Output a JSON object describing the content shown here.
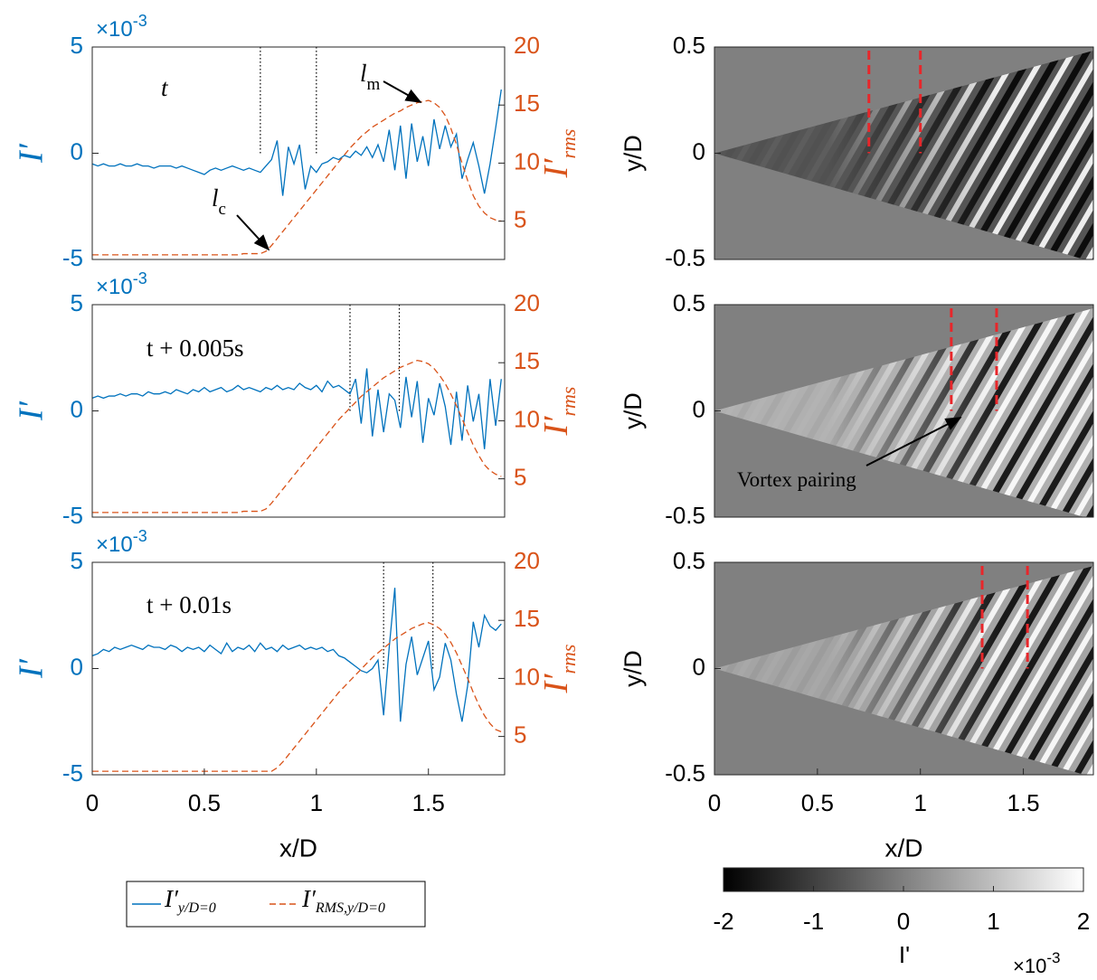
{
  "chart_data": [
    {
      "type": "line",
      "annotations": [
        {
          "text": "t"
        },
        {
          "text": "l",
          "sub": "m"
        },
        {
          "text": "l",
          "sub": "c"
        }
      ],
      "xlim": [
        0,
        1.84
      ],
      "ylim": [
        -5,
        5
      ],
      "yticks": [
        -5,
        0,
        5
      ],
      "y2lim": [
        1.7,
        20
      ],
      "y2ticks": [
        5,
        10,
        15,
        20
      ],
      "y_label": "I′",
      "y_exponent": "×10",
      "y_exponent_power": "-3",
      "y2_label": "I′",
      "y2_label_sub": "rms",
      "vlines": [
        0.75,
        1.0
      ],
      "x": [
        0,
        0.025,
        0.05,
        0.075,
        0.1,
        0.125,
        0.15,
        0.175,
        0.2,
        0.225,
        0.25,
        0.275,
        0.3,
        0.325,
        0.35,
        0.375,
        0.4,
        0.425,
        0.45,
        0.475,
        0.5,
        0.525,
        0.55,
        0.575,
        0.6,
        0.625,
        0.65,
        0.675,
        0.7,
        0.725,
        0.75,
        0.775,
        0.8,
        0.825,
        0.85,
        0.875,
        0.9,
        0.925,
        0.95,
        0.975,
        1,
        1.025,
        1.05,
        1.075,
        1.1,
        1.125,
        1.15,
        1.175,
        1.2,
        1.225,
        1.25,
        1.275,
        1.3,
        1.325,
        1.35,
        1.375,
        1.4,
        1.425,
        1.45,
        1.475,
        1.5,
        1.525,
        1.55,
        1.575,
        1.6,
        1.625,
        1.65,
        1.675,
        1.7,
        1.725,
        1.75,
        1.775,
        1.8,
        1.825
      ],
      "series": [
        {
          "color": "#0072bd",
          "axis": "y",
          "values": [
            -0.5,
            -0.6,
            -0.5,
            -0.6,
            -0.6,
            -0.5,
            -0.6,
            -0.6,
            -0.5,
            -0.6,
            -0.6,
            -0.7,
            -0.6,
            -0.6,
            -0.6,
            -0.7,
            -0.6,
            -0.7,
            -0.8,
            -0.9,
            -1.0,
            -0.8,
            -0.7,
            -0.8,
            -0.7,
            -0.6,
            -0.7,
            -0.8,
            -0.7,
            -0.8,
            -0.9,
            -0.6,
            -0.3,
            0.6,
            -2.0,
            0.3,
            -0.5,
            0.4,
            -1.7,
            -0.6,
            -0.9,
            -0.5,
            -0.4,
            -0.2,
            -0.3,
            -0.1,
            -0.2,
            0.1,
            -0.1,
            0.3,
            -0.2,
            0.4,
            -0.4,
            1.1,
            -0.8,
            1.3,
            -1.2,
            1.4,
            -0.4,
            0.8,
            -0.6,
            1.6,
            0.2,
            1.3,
            0.3,
            0.9,
            -1.2,
            -0.3,
            0.5,
            -0.6,
            -1.9,
            -0.5,
            1.2,
            3.0
          ]
        },
        {
          "color": "#d95319",
          "axis": "y2",
          "line_style": "dashed",
          "values": [
            2.1,
            2.1,
            2.1,
            2.1,
            2.1,
            2.1,
            2.1,
            2.1,
            2.1,
            2.1,
            2.1,
            2.1,
            2.1,
            2.1,
            2.1,
            2.1,
            2.1,
            2.1,
            2.1,
            2.1,
            2.1,
            2.1,
            2.1,
            2.1,
            2.1,
            2.1,
            2.1,
            2.2,
            2.2,
            2.2,
            2.2,
            2.4,
            2.9,
            3.5,
            4.1,
            4.7,
            5.3,
            5.9,
            6.5,
            7.1,
            7.7,
            8.3,
            8.9,
            9.5,
            10.1,
            10.7,
            11.3,
            11.8,
            12.3,
            12.7,
            13.1,
            13.4,
            13.7,
            14.0,
            14.3,
            14.5,
            14.8,
            15.0,
            15.2,
            15.3,
            15.4,
            15.2,
            14.8,
            14.1,
            13.0,
            11.6,
            10.0,
            8.5,
            7.2,
            6.3,
            5.7,
            5.3,
            5.1,
            5.0
          ]
        }
      ]
    },
    {
      "type": "line",
      "annotations": [
        {
          "text": "t + 0.005s"
        }
      ],
      "xlim": [
        0,
        1.84
      ],
      "ylim": [
        -5,
        5
      ],
      "yticks": [
        -5,
        0,
        5
      ],
      "y2lim": [
        1.7,
        20
      ],
      "y2ticks": [
        5,
        10,
        15,
        20
      ],
      "y_label": "I′",
      "y_exponent": "×10",
      "y_exponent_power": "-3",
      "y2_label": "I′",
      "y2_label_sub": "rms",
      "vlines": [
        1.15,
        1.37
      ],
      "x": [
        0,
        0.025,
        0.05,
        0.075,
        0.1,
        0.125,
        0.15,
        0.175,
        0.2,
        0.225,
        0.25,
        0.275,
        0.3,
        0.325,
        0.35,
        0.375,
        0.4,
        0.425,
        0.45,
        0.475,
        0.5,
        0.525,
        0.55,
        0.575,
        0.6,
        0.625,
        0.65,
        0.675,
        0.7,
        0.725,
        0.75,
        0.775,
        0.8,
        0.825,
        0.85,
        0.875,
        0.9,
        0.925,
        0.95,
        0.975,
        1,
        1.025,
        1.05,
        1.075,
        1.1,
        1.125,
        1.15,
        1.175,
        1.2,
        1.225,
        1.25,
        1.275,
        1.3,
        1.325,
        1.35,
        1.375,
        1.4,
        1.425,
        1.45,
        1.475,
        1.5,
        1.525,
        1.55,
        1.575,
        1.6,
        1.625,
        1.65,
        1.675,
        1.7,
        1.725,
        1.75,
        1.775,
        1.8,
        1.825
      ],
      "series": [
        {
          "color": "#0072bd",
          "axis": "y",
          "values": [
            0.6,
            0.7,
            0.6,
            0.7,
            0.7,
            0.8,
            0.7,
            0.8,
            0.8,
            0.7,
            0.9,
            0.8,
            0.8,
            0.9,
            0.8,
            1.0,
            0.9,
            0.8,
            1.0,
            0.9,
            1.1,
            0.9,
            1.0,
            1.1,
            0.9,
            1.0,
            1.2,
            1.0,
            1.1,
            1.0,
            0.9,
            1.1,
            1.0,
            1.2,
            1.0,
            1.1,
            1.0,
            1.3,
            1.1,
            1.0,
            1.2,
            0.9,
            1.4,
            1.1,
            1.2,
            1.0,
            0.8,
            1.5,
            -0.6,
            2.0,
            -1.2,
            1.0,
            -1.0,
            0.8,
            0.5,
            -0.8,
            1.6,
            -0.3,
            1.4,
            -1.5,
            0.6,
            -0.2,
            1.3,
            0.2,
            -1.6,
            0.9,
            -1.4,
            1.2,
            -0.5,
            0.8,
            -1.8,
            1.5,
            -0.7,
            1.5
          ]
        },
        {
          "color": "#d95319",
          "axis": "y2",
          "line_style": "dashed",
          "values": [
            2.1,
            2.1,
            2.1,
            2.1,
            2.1,
            2.1,
            2.1,
            2.1,
            2.1,
            2.1,
            2.1,
            2.1,
            2.1,
            2.1,
            2.1,
            2.1,
            2.1,
            2.1,
            2.1,
            2.1,
            2.1,
            2.1,
            2.1,
            2.1,
            2.1,
            2.1,
            2.1,
            2.2,
            2.2,
            2.2,
            2.2,
            2.4,
            2.9,
            3.5,
            4.1,
            4.7,
            5.3,
            5.9,
            6.5,
            7.1,
            7.7,
            8.3,
            8.9,
            9.5,
            10.1,
            10.6,
            11.1,
            11.6,
            12.1,
            12.5,
            12.9,
            13.3,
            13.7,
            14.0,
            14.3,
            14.6,
            14.8,
            15.0,
            15.2,
            15.1,
            14.9,
            14.5,
            13.9,
            13.2,
            12.3,
            11.3,
            10.2,
            9.0,
            7.9,
            7.0,
            6.2,
            5.7,
            5.4,
            5.2
          ]
        }
      ]
    },
    {
      "type": "line",
      "annotations": [
        {
          "text": "t + 0.01s"
        }
      ],
      "xlim": [
        0,
        1.84
      ],
      "xticks": [
        0,
        0.5,
        1,
        1.5
      ],
      "x_label": "x/D",
      "ylim": [
        -5,
        5
      ],
      "yticks": [
        -5,
        0,
        5
      ],
      "y2lim": [
        1.7,
        20
      ],
      "y2ticks": [
        5,
        10,
        15,
        20
      ],
      "y_label": "I′",
      "y_exponent": "×10",
      "y_exponent_power": "-3",
      "y2_label": "I′",
      "y2_label_sub": "rms",
      "vlines": [
        1.3,
        1.52
      ],
      "x": [
        0,
        0.025,
        0.05,
        0.075,
        0.1,
        0.125,
        0.15,
        0.175,
        0.2,
        0.225,
        0.25,
        0.275,
        0.3,
        0.325,
        0.35,
        0.375,
        0.4,
        0.425,
        0.45,
        0.475,
        0.5,
        0.525,
        0.55,
        0.575,
        0.6,
        0.625,
        0.65,
        0.675,
        0.7,
        0.725,
        0.75,
        0.775,
        0.8,
        0.825,
        0.85,
        0.875,
        0.9,
        0.925,
        0.95,
        0.975,
        1,
        1.025,
        1.05,
        1.075,
        1.1,
        1.125,
        1.15,
        1.175,
        1.2,
        1.225,
        1.25,
        1.275,
        1.3,
        1.325,
        1.35,
        1.375,
        1.4,
        1.425,
        1.45,
        1.475,
        1.5,
        1.525,
        1.55,
        1.575,
        1.6,
        1.625,
        1.65,
        1.675,
        1.7,
        1.725,
        1.75,
        1.775,
        1.8,
        1.825
      ],
      "series": [
        {
          "name": "I′",
          "name_sub": "y/D=0",
          "color": "#0072bd",
          "axis": "y",
          "values": [
            0.6,
            0.7,
            0.9,
            0.8,
            1.0,
            0.9,
            1.0,
            1.1,
            1.0,
            0.9,
            1.1,
            1.0,
            1.0,
            0.9,
            1.1,
            1.0,
            0.8,
            1.0,
            0.9,
            1.0,
            0.8,
            1.1,
            0.9,
            0.7,
            1.2,
            0.8,
            1.0,
            0.9,
            1.1,
            0.8,
            1.2,
            0.9,
            1.0,
            0.8,
            1.1,
            0.9,
            1.0,
            1.1,
            0.9,
            1.0,
            0.9,
            1.0,
            0.8,
            0.9,
            0.6,
            0.5,
            0.3,
            0.1,
            -0.1,
            -0.2,
            0.0,
            0.4,
            -2.2,
            1.0,
            3.8,
            -2.5,
            0.2,
            1.5,
            -0.3,
            0.5,
            1.3,
            -1.0,
            -0.4,
            1.2,
            0.4,
            -1.2,
            -2.5,
            -0.8,
            2.2,
            1.0,
            2.5,
            2.0,
            1.8,
            2.1
          ]
        },
        {
          "name": "I′",
          "name_sub": "RMS,y/D=0",
          "color": "#d95319",
          "axis": "y2",
          "line_style": "dashed",
          "values": [
            2.0,
            2.0,
            2.0,
            2.0,
            2.0,
            2.0,
            2.0,
            2.0,
            2.0,
            2.0,
            2.0,
            2.0,
            2.0,
            2.0,
            2.0,
            2.0,
            2.0,
            2.0,
            2.0,
            2.0,
            2.0,
            2.0,
            2.0,
            2.0,
            2.0,
            2.0,
            2.0,
            2.0,
            2.0,
            2.0,
            2.0,
            2.0,
            2.0,
            2.3,
            2.8,
            3.4,
            4.0,
            4.6,
            5.2,
            5.8,
            6.4,
            7.0,
            7.6,
            8.2,
            8.8,
            9.3,
            9.8,
            10.3,
            10.8,
            11.3,
            11.8,
            12.2,
            12.6,
            13.0,
            13.4,
            13.7,
            14.0,
            14.3,
            14.5,
            14.7,
            14.8,
            14.6,
            14.3,
            13.8,
            13.1,
            12.2,
            11.1,
            10.0,
            8.8,
            7.7,
            6.8,
            6.1,
            5.6,
            5.4
          ]
        }
      ]
    },
    {
      "type": "image",
      "xlim": [
        0,
        1.84
      ],
      "ylim": [
        -0.5,
        0.5
      ],
      "yticks": [
        -0.5,
        0,
        0.5
      ],
      "y_label": "y/D",
      "vlines": [
        0.75,
        1.0
      ]
    },
    {
      "type": "image",
      "xlim": [
        0,
        1.84
      ],
      "ylim": [
        -0.5,
        0.5
      ],
      "yticks": [
        -0.5,
        0,
        0.5
      ],
      "y_label": "y/D",
      "vlines": [
        1.15,
        1.37
      ],
      "annotations": [
        {
          "text": "Vortex pairing"
        }
      ]
    },
    {
      "type": "image",
      "xlim": [
        0,
        1.84
      ],
      "xticks": [
        0,
        0.5,
        1,
        1.5
      ],
      "x_label": "x/D",
      "ylim": [
        -0.5,
        0.5
      ],
      "yticks": [
        -0.5,
        0,
        0.5
      ],
      "y_label": "y/D",
      "vlines": [
        1.3,
        1.52
      ]
    }
  ],
  "colorbar": {
    "lim": [
      -2,
      2
    ],
    "ticks": [
      -2,
      -1,
      0,
      1,
      2
    ],
    "label": "I'",
    "exponent": "×10",
    "exponent_power": "-3"
  }
}
